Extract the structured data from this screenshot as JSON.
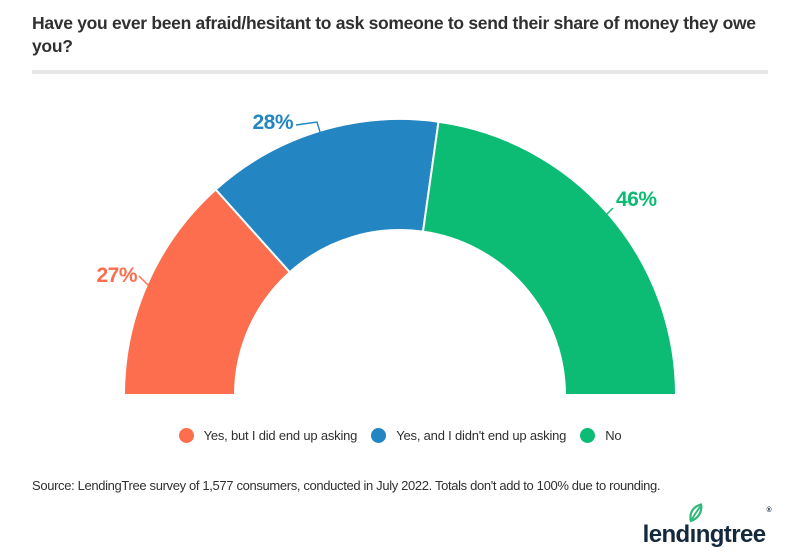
{
  "title": "Have you ever been afraid/hesitant to ask someone to send their share of money they owe you?",
  "chart_data": {
    "type": "pie",
    "variant": "half-donut",
    "title": "Have you ever been afraid/hesitant to ask someone to send their share of money they owe you?",
    "categories": [
      "Yes, but I did end up asking",
      "Yes, and I didn't end up asking",
      "No"
    ],
    "values": [
      27,
      28,
      46
    ],
    "unit": "%",
    "data_labels": [
      "27%",
      "28%",
      "46%"
    ],
    "colors": [
      "#FC6E4E",
      "#2386C2",
      "#0CBC75"
    ],
    "legend_position": "bottom",
    "span_degrees": 180,
    "note": "Totals don't add to 100% due to rounding."
  },
  "source": "Source: LendingTree survey of 1,577 consumers, conducted in July 2022. Totals don't add to 100% due to rounding.",
  "logo": {
    "text_left": "lend",
    "text_i": "ı",
    "text_right": "ngtree",
    "registered_mark": "®",
    "brand_navy": "#15293c",
    "leaf_green": "#2fb877"
  }
}
